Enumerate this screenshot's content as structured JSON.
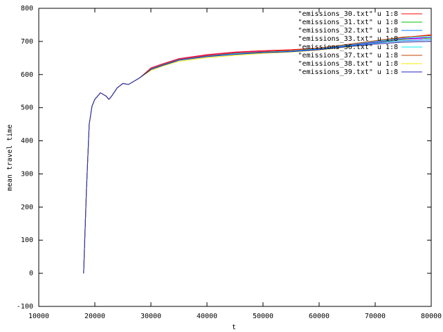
{
  "chart_data": {
    "type": "line",
    "xlabel": "t",
    "ylabel": "mean travel time",
    "x": [
      18000,
      18500,
      19000,
      19500,
      20000,
      21000,
      22000,
      22500,
      23000,
      24000,
      25000,
      26000,
      28000,
      30000,
      32000,
      35000,
      40000,
      45000,
      50000,
      55000,
      60000,
      65000,
      70000,
      75000,
      80000
    ],
    "xlim": [
      10000,
      80000
    ],
    "ylim": [
      -100,
      800
    ],
    "xticks": [
      10000,
      20000,
      30000,
      40000,
      50000,
      60000,
      70000,
      80000
    ],
    "yticks": [
      -100,
      0,
      100,
      200,
      300,
      400,
      500,
      600,
      700,
      800
    ],
    "legend": "upper right",
    "series": [
      {
        "name": "\"emissions_30.txt\" u 1:8",
        "color": "#ff0000",
        "values": [
          0,
          250,
          450,
          505,
          525,
          545,
          535,
          525,
          535,
          560,
          573,
          570,
          590,
          620,
          632,
          648,
          660,
          668,
          672,
          675,
          680,
          690,
          700,
          712,
          720
        ]
      },
      {
        "name": "\"emissions_31.txt\" u 1:8",
        "color": "#00c000",
        "values": [
          0,
          250,
          450,
          505,
          525,
          545,
          535,
          525,
          535,
          560,
          573,
          570,
          590,
          618,
          630,
          646,
          657,
          664,
          669,
          672,
          678,
          688,
          697,
          706,
          710
        ]
      },
      {
        "name": "\"emissions_32.txt\" u 1:8",
        "color": "#0080ff",
        "values": [
          0,
          250,
          450,
          505,
          525,
          545,
          535,
          525,
          535,
          560,
          573,
          570,
          590,
          617,
          629,
          645,
          656,
          663,
          668,
          671,
          677,
          686,
          695,
          702,
          705
        ]
      },
      {
        "name": "\"emissions_33.txt\" u 1:8",
        "color": "#c000ff",
        "values": [
          0,
          250,
          450,
          505,
          525,
          545,
          535,
          525,
          535,
          560,
          573,
          570,
          590,
          619,
          631,
          647,
          658,
          666,
          670,
          673,
          679,
          689,
          698,
          708,
          712
        ]
      },
      {
        "name": "\"emissions_36.txt\" u 1:8",
        "color": "#00eeee",
        "values": [
          0,
          250,
          450,
          505,
          525,
          545,
          535,
          525,
          535,
          560,
          573,
          570,
          590,
          616,
          628,
          644,
          655,
          663,
          668,
          672,
          679,
          690,
          700,
          710,
          715
        ]
      },
      {
        "name": "\"emissions_37.txt\" u 1:8",
        "color": "#c04000",
        "values": [
          0,
          250,
          450,
          505,
          525,
          545,
          535,
          525,
          535,
          560,
          573,
          570,
          590,
          618,
          630,
          646,
          657,
          665,
          669,
          673,
          680,
          691,
          702,
          713,
          718
        ]
      },
      {
        "name": "\"emissions_38.txt\" u 1:8",
        "color": "#eeee00",
        "values": [
          0,
          250,
          450,
          505,
          525,
          545,
          535,
          525,
          535,
          560,
          573,
          570,
          590,
          612,
          625,
          640,
          651,
          658,
          664,
          668,
          674,
          683,
          692,
          698,
          700
        ]
      },
      {
        "name": "\"emissions_39.txt\" u 1:8",
        "color": "#2020c0",
        "values": [
          0,
          250,
          450,
          505,
          525,
          545,
          535,
          525,
          535,
          560,
          573,
          570,
          590,
          615,
          627,
          643,
          654,
          661,
          666,
          669,
          675,
          684,
          692,
          698,
          700
        ]
      }
    ]
  }
}
